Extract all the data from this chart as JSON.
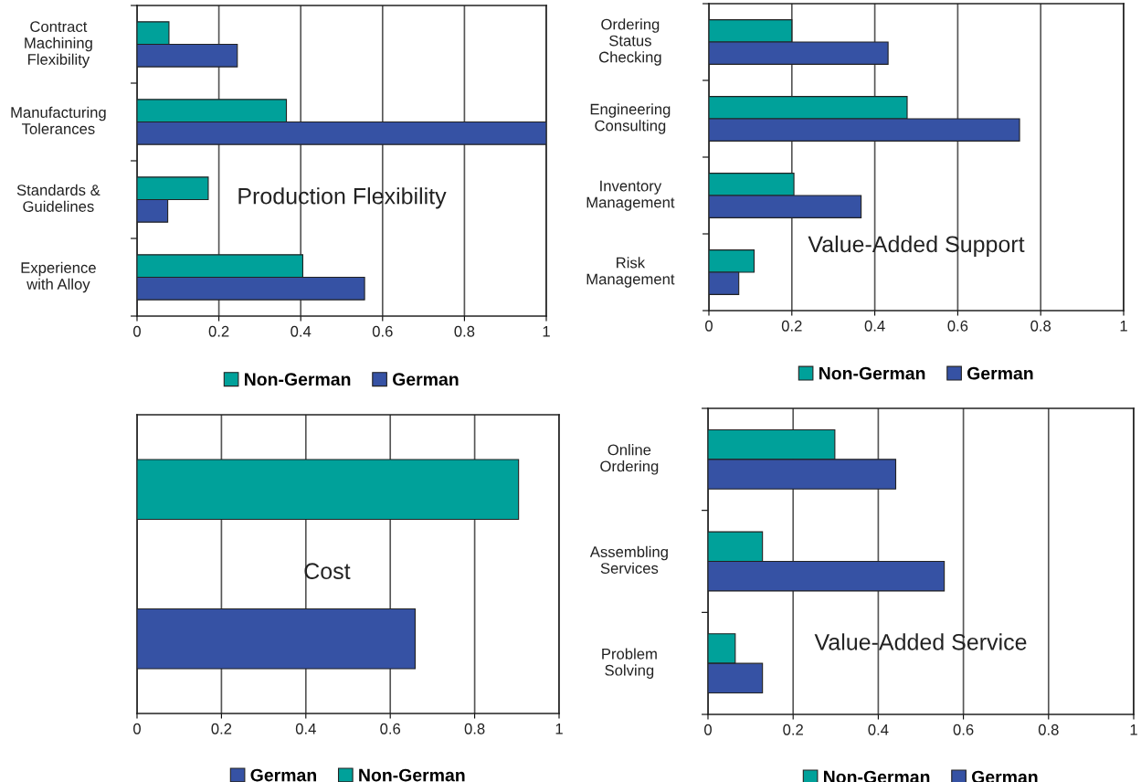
{
  "chart_data": [
    {
      "type": "bar",
      "orientation": "horizontal",
      "title": "Production Flexibility",
      "categories": [
        "Contract\nMachining\nFlexibility",
        "Manufacturing\nTolerances",
        "Standards &\nGuidelines",
        "Experience\nwith Alloy"
      ],
      "series": [
        {
          "name": "Non-German",
          "color": "#00a19a",
          "values": [
            0.078,
            0.365,
            0.174,
            0.405
          ]
        },
        {
          "name": "German",
          "color": "#3652a4",
          "values": [
            0.245,
            1.0,
            0.075,
            0.556
          ]
        }
      ],
      "xlim": [
        0,
        1
      ],
      "xticks": [
        0,
        0.2,
        0.4,
        0.6,
        0.8,
        1
      ],
      "grid": "x",
      "legend": "bottom"
    },
    {
      "type": "bar",
      "orientation": "horizontal",
      "title": "Value-Added Support",
      "categories": [
        "Ordering\nStatus\nChecking",
        "Engineering\nConsulting",
        "Inventory\nManagement",
        "Risk\nManagement"
      ],
      "series": [
        {
          "name": "Non-German",
          "color": "#00a19a",
          "values": [
            0.2,
            0.478,
            0.205,
            0.109
          ]
        },
        {
          "name": "German",
          "color": "#3652a4",
          "values": [
            0.432,
            0.749,
            0.367,
            0.072
          ]
        }
      ],
      "xlim": [
        0,
        1
      ],
      "xticks": [
        0,
        0.2,
        0.4,
        0.6,
        0.8,
        1
      ],
      "grid": "x",
      "legend": "bottom"
    },
    {
      "type": "bar",
      "orientation": "horizontal",
      "title": "Cost",
      "categories": [
        null,
        null
      ],
      "series": [
        {
          "name": "German",
          "color": "#3652a4",
          "values": [
            null,
            0.659
          ]
        },
        {
          "name": "Non-German",
          "color": "#00a19a",
          "values": [
            0.904,
            null
          ]
        }
      ],
      "xlim": [
        0,
        1
      ],
      "xticks": [
        0,
        0.2,
        0.4,
        0.6,
        0.8,
        1
      ],
      "grid": "x",
      "legend": "bottom"
    },
    {
      "type": "bar",
      "orientation": "horizontal",
      "title": "Value-Added Service",
      "categories": [
        "Online\nOrdering",
        "Assembling\nServices",
        "Problem\nSolving"
      ],
      "series": [
        {
          "name": "Non-German",
          "color": "#00a19a",
          "values": [
            0.298,
            0.128,
            0.064
          ]
        },
        {
          "name": "German",
          "color": "#3652a4",
          "values": [
            0.441,
            0.555,
            0.128
          ]
        }
      ],
      "xlim": [
        0,
        1
      ],
      "xticks": [
        0,
        0.2,
        0.4,
        0.6,
        0.8,
        1
      ],
      "grid": "x",
      "legend": "bottom"
    }
  ]
}
